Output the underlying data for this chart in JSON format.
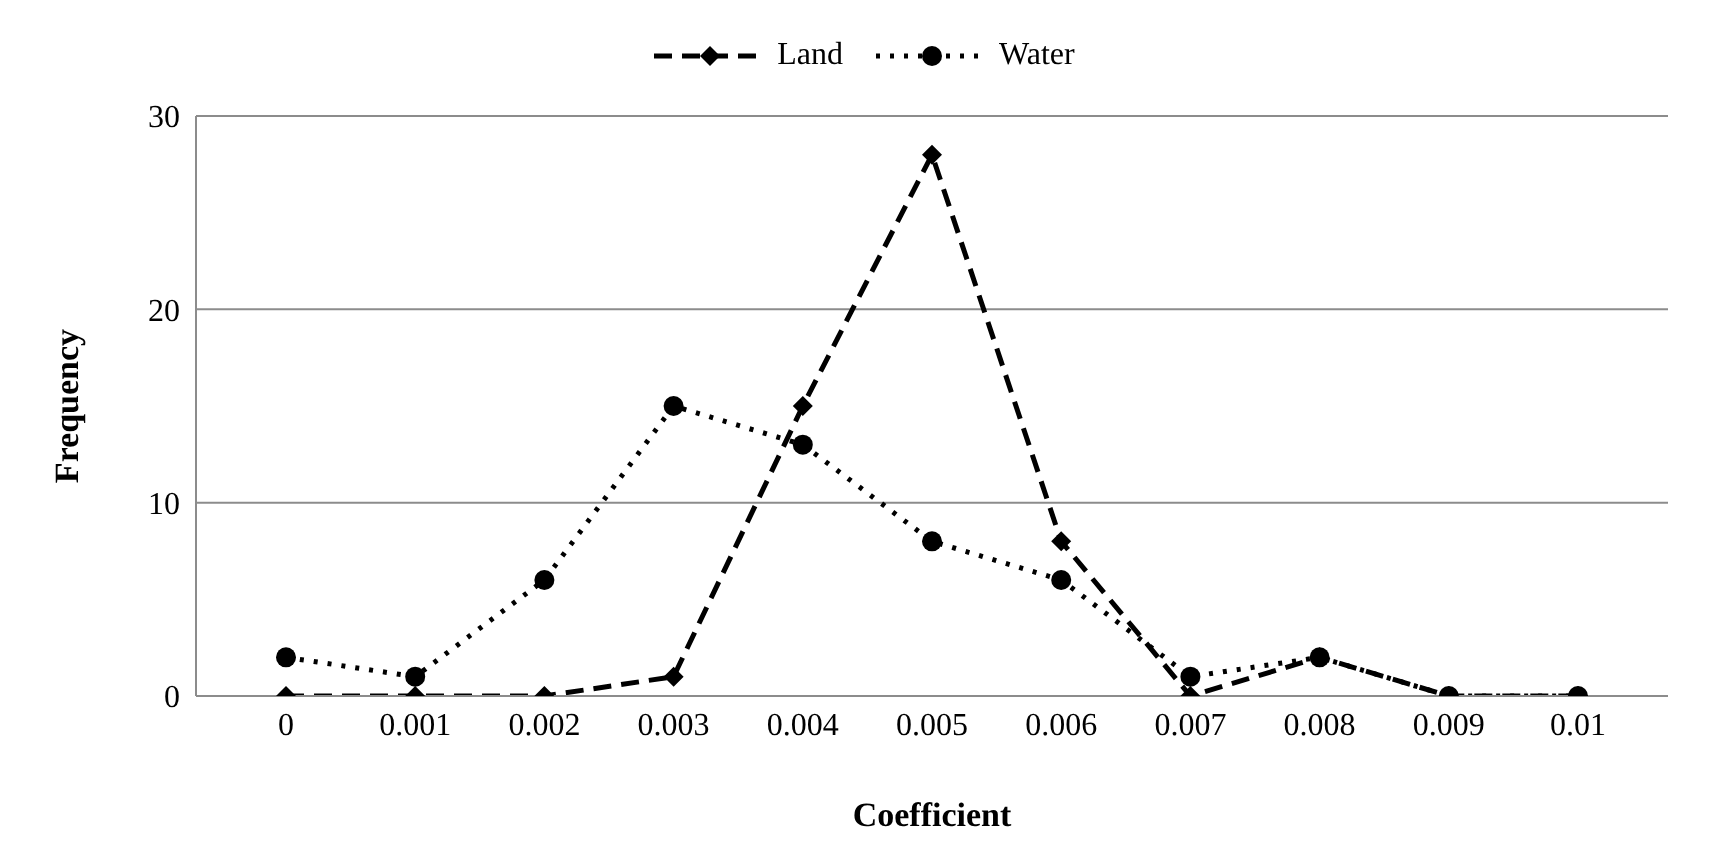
{
  "chart_data": {
    "type": "line",
    "xlabel": "Coefficient",
    "ylabel": "Frequency",
    "categories": [
      "0",
      "0.001",
      "0.002",
      "0.003",
      "0.004",
      "0.005",
      "0.006",
      "0.007",
      "0.008",
      "0.009",
      "0.01"
    ],
    "series": [
      {
        "name": "Land",
        "color": "#000000",
        "marker": "diamond",
        "line_style": "dashed",
        "values": [
          0,
          0,
          0,
          1,
          15,
          28,
          8,
          0,
          2,
          0,
          0
        ]
      },
      {
        "name": "Water",
        "color": "#000000",
        "marker": "circle",
        "line_style": "dotted",
        "values": [
          2,
          1,
          6,
          15,
          13,
          8,
          6,
          1,
          2,
          0,
          0
        ]
      }
    ],
    "ylim": [
      0,
      30
    ],
    "yticks": [
      0,
      10,
      20,
      30
    ],
    "grid": "y",
    "legend": "top"
  }
}
